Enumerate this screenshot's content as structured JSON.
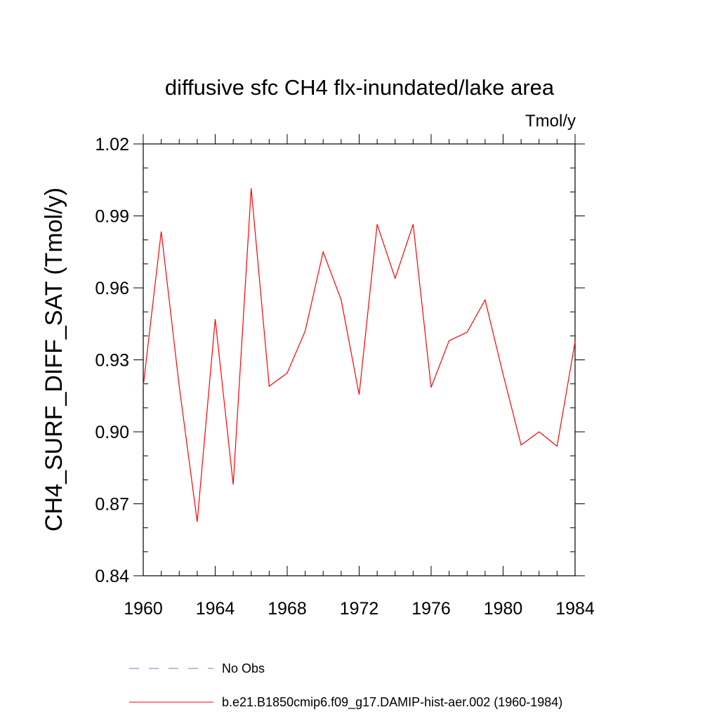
{
  "chart_data": {
    "type": "line",
    "title": "diffusive sfc CH4 flx-inundated/lake area",
    "units": "Tmol/y",
    "ylabel": "CH4_SURF_DIFF_SAT  (Tmol/y)",
    "xlabel": "",
    "xlim": [
      1960,
      1984
    ],
    "ylim": [
      0.84,
      1.02
    ],
    "x_ticks": [
      "1960",
      "1964",
      "1968",
      "1972",
      "1976",
      "1980",
      "1984"
    ],
    "y_ticks": [
      "0.84",
      "0.87",
      "0.90",
      "0.93",
      "0.96",
      "0.99",
      "1.02"
    ],
    "grid": false,
    "legend_position": "bottom",
    "series": [
      {
        "name": "No Obs",
        "color": "#7b78c9",
        "dash": "dashed",
        "x": [],
        "values": []
      },
      {
        "name": "b.e21.B1850cmip6.f09_g17.DAMIP-hist-aer.002 (1960-1984)",
        "color": "#ff0000",
        "dash": "solid",
        "x": [
          1960,
          1961,
          1962,
          1963,
          1964,
          1965,
          1966,
          1967,
          1968,
          1969,
          1970,
          1971,
          1972,
          1973,
          1974,
          1975,
          1976,
          1977,
          1978,
          1979,
          1980,
          1981,
          1982,
          1983,
          1984
        ],
        "values": [
          0.919,
          0.9835,
          0.919,
          0.8625,
          0.947,
          0.878,
          1.0015,
          0.919,
          0.9245,
          0.942,
          0.975,
          0.955,
          0.9155,
          0.9865,
          0.964,
          0.9865,
          0.9185,
          0.938,
          0.9415,
          0.955,
          0.924,
          0.8945,
          0.9,
          0.894,
          0.9375
        ]
      }
    ]
  }
}
